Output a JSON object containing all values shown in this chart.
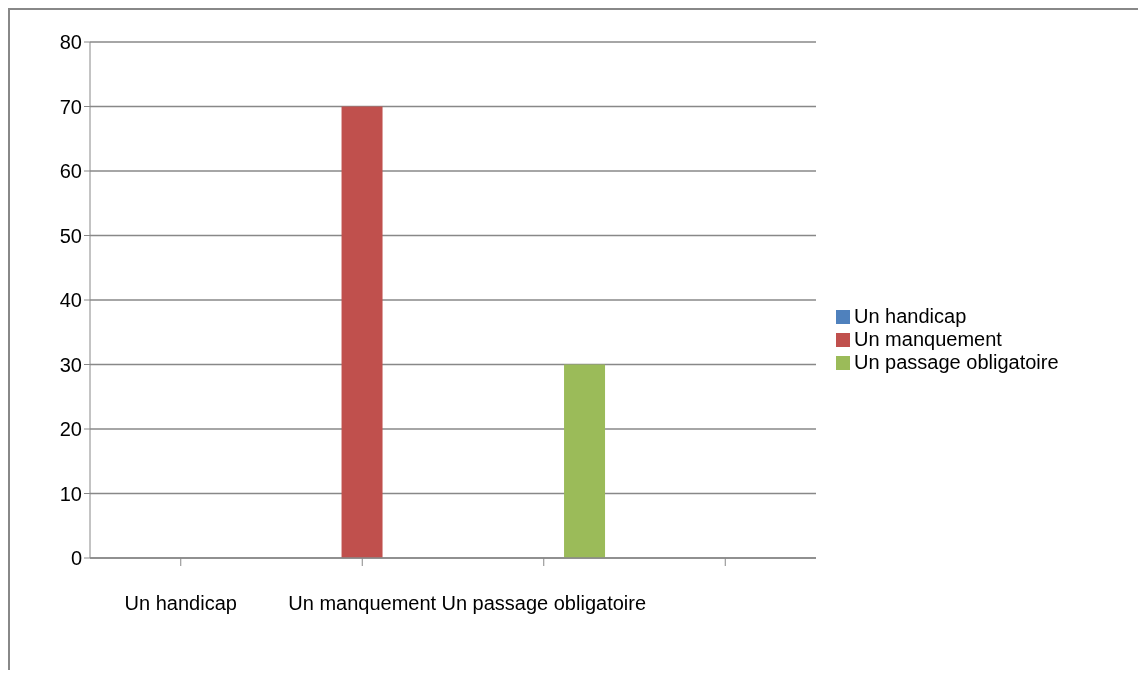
{
  "chart_data": {
    "type": "bar",
    "categories": [
      "Un handicap",
      "Un manquement",
      "Un passage obligatoire",
      null
    ],
    "series": [
      {
        "name": "Un handicap",
        "color": "#4f81bd",
        "values": [
          0,
          null,
          null,
          null
        ]
      },
      {
        "name": "Un manquement",
        "color": "#c0504d",
        "values": [
          null,
          70,
          null,
          null
        ]
      },
      {
        "name": "Un passage obligatoire",
        "color": "#9bbb59",
        "values": [
          null,
          null,
          30,
          null
        ]
      }
    ],
    "ylim": [
      0,
      80
    ],
    "yticks": [
      0,
      10,
      20,
      30,
      40,
      50,
      60,
      70,
      80
    ],
    "grid": "y",
    "legend": "right"
  }
}
